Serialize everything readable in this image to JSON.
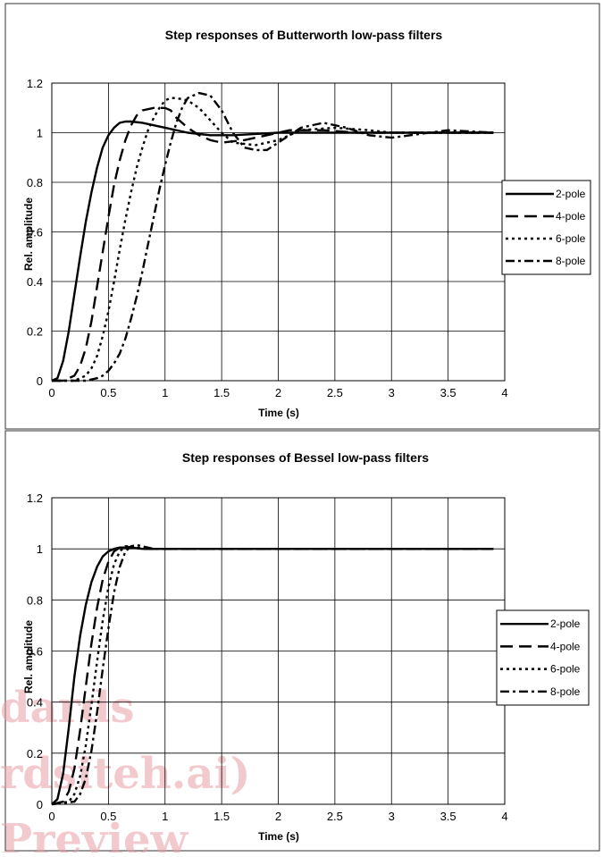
{
  "watermark": {
    "lines": [
      "dards",
      "rdsiteh.ai)",
      "Preview"
    ]
  },
  "chart_data": [
    {
      "type": "line",
      "title": "Step responses of Butterworth low-pass filters",
      "xlabel": "Time (s)",
      "ylabel": "Rel. amplitude",
      "xlim": [
        0,
        4
      ],
      "ylim": [
        0,
        1.2
      ],
      "xticks": [
        "0",
        "0.5",
        "1",
        "1.5",
        "2",
        "2.5",
        "3",
        "3.5",
        "4"
      ],
      "yticks": [
        "0",
        "0.2",
        "0.4",
        "0.6",
        "0.8",
        "1",
        "1.2"
      ],
      "grid": true,
      "legend_position": "right",
      "series": [
        {
          "name": "2-pole",
          "dash": "solid",
          "x": [
            0,
            0.05,
            0.1,
            0.15,
            0.2,
            0.25,
            0.3,
            0.35,
            0.4,
            0.45,
            0.5,
            0.55,
            0.6,
            0.65,
            0.7,
            0.8,
            0.9,
            1.0,
            1.2,
            1.4,
            1.6,
            1.8,
            2.0,
            2.5,
            3.0,
            3.5,
            3.9
          ],
          "y": [
            0,
            0.01,
            0.08,
            0.2,
            0.35,
            0.5,
            0.64,
            0.76,
            0.86,
            0.94,
            0.99,
            1.02,
            1.04,
            1.045,
            1.045,
            1.04,
            1.03,
            1.02,
            1.0,
            0.99,
            0.99,
            0.995,
            1.0,
            1.0,
            1.0,
            1.0,
            1.0
          ]
        },
        {
          "name": "4-pole",
          "dash": "long-dash",
          "x": [
            0,
            0.1,
            0.2,
            0.25,
            0.3,
            0.35,
            0.4,
            0.45,
            0.5,
            0.55,
            0.6,
            0.65,
            0.7,
            0.75,
            0.8,
            0.9,
            1.0,
            1.05,
            1.1,
            1.2,
            1.3,
            1.4,
            1.5,
            1.7,
            1.9,
            2.1,
            2.4,
            2.7,
            3.0,
            3.5,
            3.9
          ],
          "y": [
            0,
            0.0,
            0.02,
            0.06,
            0.13,
            0.24,
            0.38,
            0.52,
            0.66,
            0.79,
            0.89,
            0.97,
            1.03,
            1.07,
            1.09,
            1.1,
            1.1,
            1.09,
            1.06,
            1.02,
            0.99,
            0.97,
            0.96,
            0.97,
            0.99,
            1.01,
            1.01,
            1.0,
            1.0,
            1.0,
            1.0
          ]
        },
        {
          "name": "6-pole",
          "dash": "dotted",
          "x": [
            0,
            0.2,
            0.3,
            0.35,
            0.4,
            0.45,
            0.5,
            0.55,
            0.6,
            0.65,
            0.7,
            0.75,
            0.8,
            0.85,
            0.9,
            0.95,
            1.0,
            1.05,
            1.1,
            1.2,
            1.3,
            1.4,
            1.5,
            1.6,
            1.8,
            2.0,
            2.2,
            2.5,
            2.8,
            3.0,
            3.5,
            3.9
          ],
          "y": [
            0,
            0.0,
            0.02,
            0.05,
            0.1,
            0.18,
            0.28,
            0.4,
            0.53,
            0.65,
            0.76,
            0.86,
            0.94,
            1.01,
            1.06,
            1.1,
            1.13,
            1.14,
            1.14,
            1.13,
            1.1,
            1.05,
            1.0,
            0.96,
            0.95,
            0.97,
            1.01,
            1.02,
            1.01,
            1.0,
            1.0,
            1.0
          ]
        },
        {
          "name": "8-pole",
          "dash": "dash-dot",
          "x": [
            0,
            0.3,
            0.4,
            0.45,
            0.5,
            0.55,
            0.6,
            0.65,
            0.7,
            0.75,
            0.8,
            0.85,
            0.9,
            0.95,
            1.0,
            1.05,
            1.1,
            1.15,
            1.2,
            1.3,
            1.4,
            1.5,
            1.6,
            1.7,
            1.8,
            1.9,
            2.0,
            2.2,
            2.4,
            2.6,
            2.8,
            3.0,
            3.5,
            3.9
          ],
          "y": [
            0,
            0.0,
            0.01,
            0.02,
            0.04,
            0.07,
            0.11,
            0.17,
            0.25,
            0.34,
            0.44,
            0.55,
            0.66,
            0.77,
            0.87,
            0.96,
            1.04,
            1.1,
            1.14,
            1.16,
            1.15,
            1.09,
            1.0,
            0.94,
            0.93,
            0.93,
            0.96,
            1.02,
            1.04,
            1.02,
            0.99,
            0.98,
            1.01,
            1.0
          ]
        }
      ]
    },
    {
      "type": "line",
      "title": "Step responses of Bessel low-pass filters",
      "xlabel": "Time (s)",
      "ylabel": "Rel. amplitude",
      "xlim": [
        0,
        4
      ],
      "ylim": [
        0,
        1.2
      ],
      "xticks": [
        "0",
        "0.5",
        "1",
        "1.5",
        "2",
        "2.5",
        "3",
        "3.5",
        "4"
      ],
      "yticks": [
        "0",
        "0.2",
        "0.4",
        "0.6",
        "0.8",
        "1",
        "1.2"
      ],
      "grid": true,
      "legend_position": "right",
      "series": [
        {
          "name": "2-pole",
          "dash": "solid",
          "x": [
            0,
            0.05,
            0.1,
            0.15,
            0.2,
            0.25,
            0.3,
            0.35,
            0.4,
            0.45,
            0.5,
            0.55,
            0.6,
            0.7,
            0.8,
            1.0,
            2.0,
            3.9
          ],
          "y": [
            0,
            0.02,
            0.12,
            0.3,
            0.5,
            0.66,
            0.78,
            0.87,
            0.93,
            0.97,
            0.99,
            1.0,
            1.005,
            1.005,
            1.0,
            1.0,
            1.0,
            1.0
          ]
        },
        {
          "name": "4-pole",
          "dash": "long-dash",
          "x": [
            0,
            0.1,
            0.15,
            0.2,
            0.25,
            0.3,
            0.35,
            0.4,
            0.45,
            0.5,
            0.55,
            0.6,
            0.65,
            0.7,
            0.8,
            1.0,
            2.0,
            3.9
          ],
          "y": [
            0,
            0.01,
            0.05,
            0.14,
            0.29,
            0.46,
            0.63,
            0.77,
            0.88,
            0.95,
            0.99,
            1.005,
            1.01,
            1.005,
            1.0,
            1.0,
            1.0,
            1.0
          ]
        },
        {
          "name": "6-pole",
          "dash": "dotted",
          "x": [
            0,
            0.15,
            0.2,
            0.25,
            0.3,
            0.35,
            0.4,
            0.45,
            0.5,
            0.55,
            0.6,
            0.65,
            0.7,
            0.75,
            0.85,
            1.0,
            2.0,
            3.9
          ],
          "y": [
            0,
            0.01,
            0.04,
            0.11,
            0.23,
            0.39,
            0.56,
            0.72,
            0.85,
            0.94,
            0.99,
            1.01,
            1.01,
            1.005,
            1.0,
            1.0,
            1.0,
            1.0
          ]
        },
        {
          "name": "8-pole",
          "dash": "dash-dot",
          "x": [
            0,
            0.2,
            0.25,
            0.3,
            0.35,
            0.4,
            0.45,
            0.5,
            0.55,
            0.6,
            0.65,
            0.7,
            0.75,
            0.8,
            0.9,
            1.0,
            2.0,
            3.9
          ],
          "y": [
            0,
            0.01,
            0.04,
            0.1,
            0.21,
            0.36,
            0.53,
            0.69,
            0.83,
            0.93,
            0.99,
            1.01,
            1.015,
            1.01,
            1.0,
            1.0,
            1.0,
            1.0
          ]
        }
      ]
    }
  ]
}
